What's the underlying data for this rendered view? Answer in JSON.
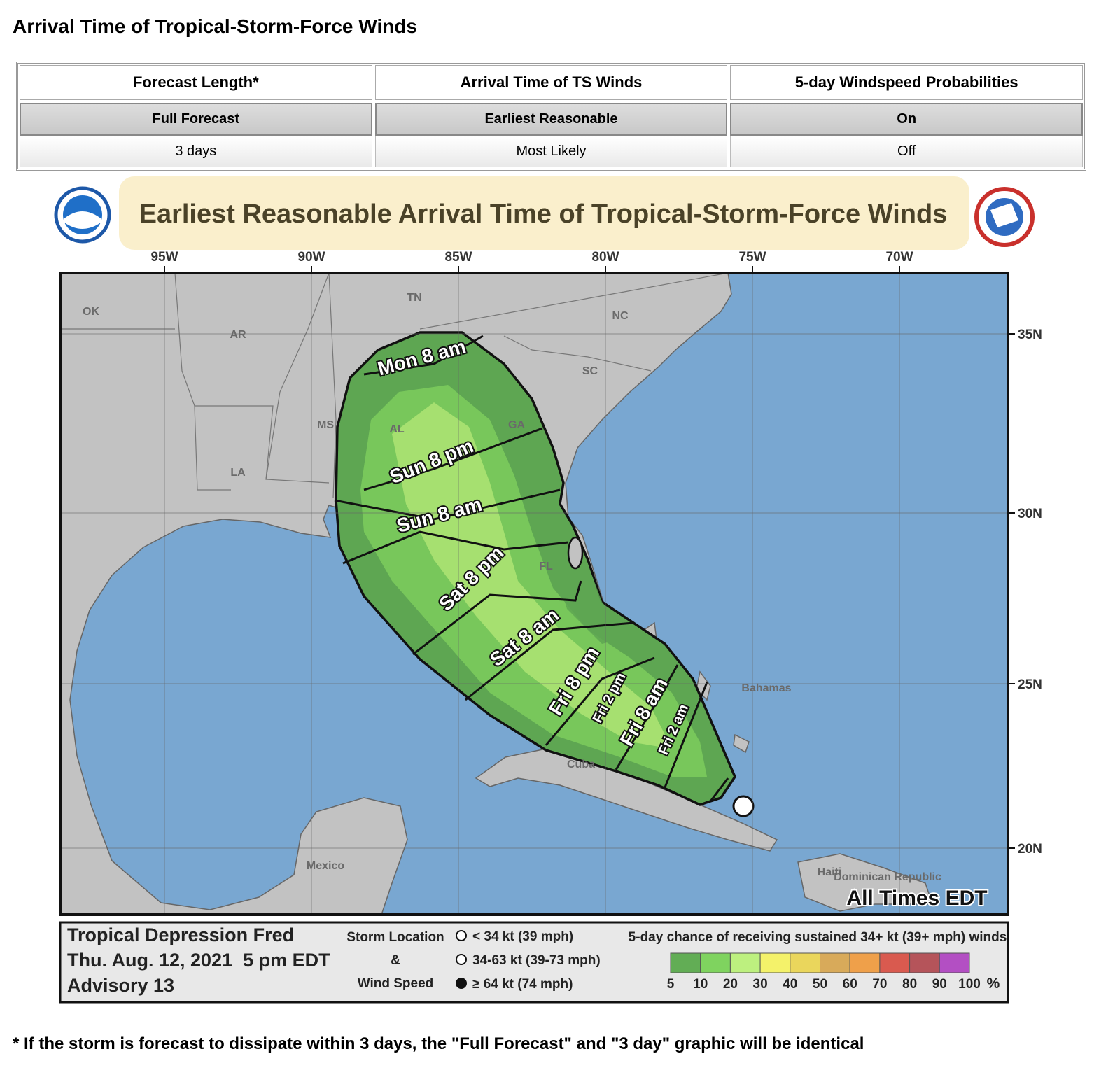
{
  "header": {
    "title": "Arrival Time of Tropical-Storm-Force Winds"
  },
  "controls": {
    "columns": [
      {
        "label": "Forecast Length*",
        "options": [
          "Full Forecast",
          "3 days"
        ],
        "selected": 0
      },
      {
        "label": "Arrival Time of TS Winds",
        "options": [
          "Earliest Reasonable",
          "Most Likely"
        ],
        "selected": 0
      },
      {
        "label": "5-day Windspeed Probabilities",
        "options": [
          "On",
          "Off"
        ],
        "selected": 0
      }
    ]
  },
  "map": {
    "title": "Earliest Reasonable Arrival Time of Tropical-Storm-Force Winds",
    "lon_labels": [
      "95W",
      "90W",
      "85W",
      "80W",
      "75W",
      "70W"
    ],
    "lat_labels": [
      "35N",
      "30N",
      "25N",
      "20N"
    ],
    "place_labels": [
      "OK",
      "AR",
      "TN",
      "NC",
      "SC",
      "MS",
      "AL",
      "GA",
      "LA",
      "FL",
      "Bahamas",
      "Cuba",
      "Mexico",
      "Haiti",
      "Dominican Republic"
    ],
    "time_labels": [
      "Mon 8 am",
      "Sun 8 pm",
      "Sun 8 am",
      "Sat 8 pm",
      "Sat 8 am",
      "Fri 8 pm",
      "Fri 2 pm",
      "Fri 8 am",
      "Fri 2 am"
    ],
    "timezone_note": "All Times EDT",
    "info": {
      "storm_name": "Tropical Depression Fred",
      "issued": "Thu. Aug. 12, 2021  5 pm EDT",
      "advisory": "Advisory 13"
    },
    "wind_key": {
      "heading": [
        "Storm Location",
        "&",
        "Wind Speed"
      ],
      "items": [
        "< 34 kt (39 mph)",
        "34-63 kt (39-73 mph)",
        "≥ 64 kt (74 mph)"
      ]
    },
    "probability_legend": {
      "title": "5-day chance of receiving sustained 34+ kt (39+ mph) winds",
      "ticks": [
        5,
        10,
        20,
        30,
        40,
        50,
        60,
        70,
        80,
        90,
        100
      ],
      "unit": "%",
      "colors": [
        "#62ad55",
        "#7fd35f",
        "#bdf07f",
        "#f4f26a",
        "#ead65c",
        "#d8aa5a",
        "#efa04a",
        "#d95a4f",
        "#b5545a",
        "#b34fc3"
      ]
    }
  },
  "footnote": "* If the storm is forecast to dissipate within 3 days, the \"Full Forecast\" and \"3 day\" graphic will be identical"
}
